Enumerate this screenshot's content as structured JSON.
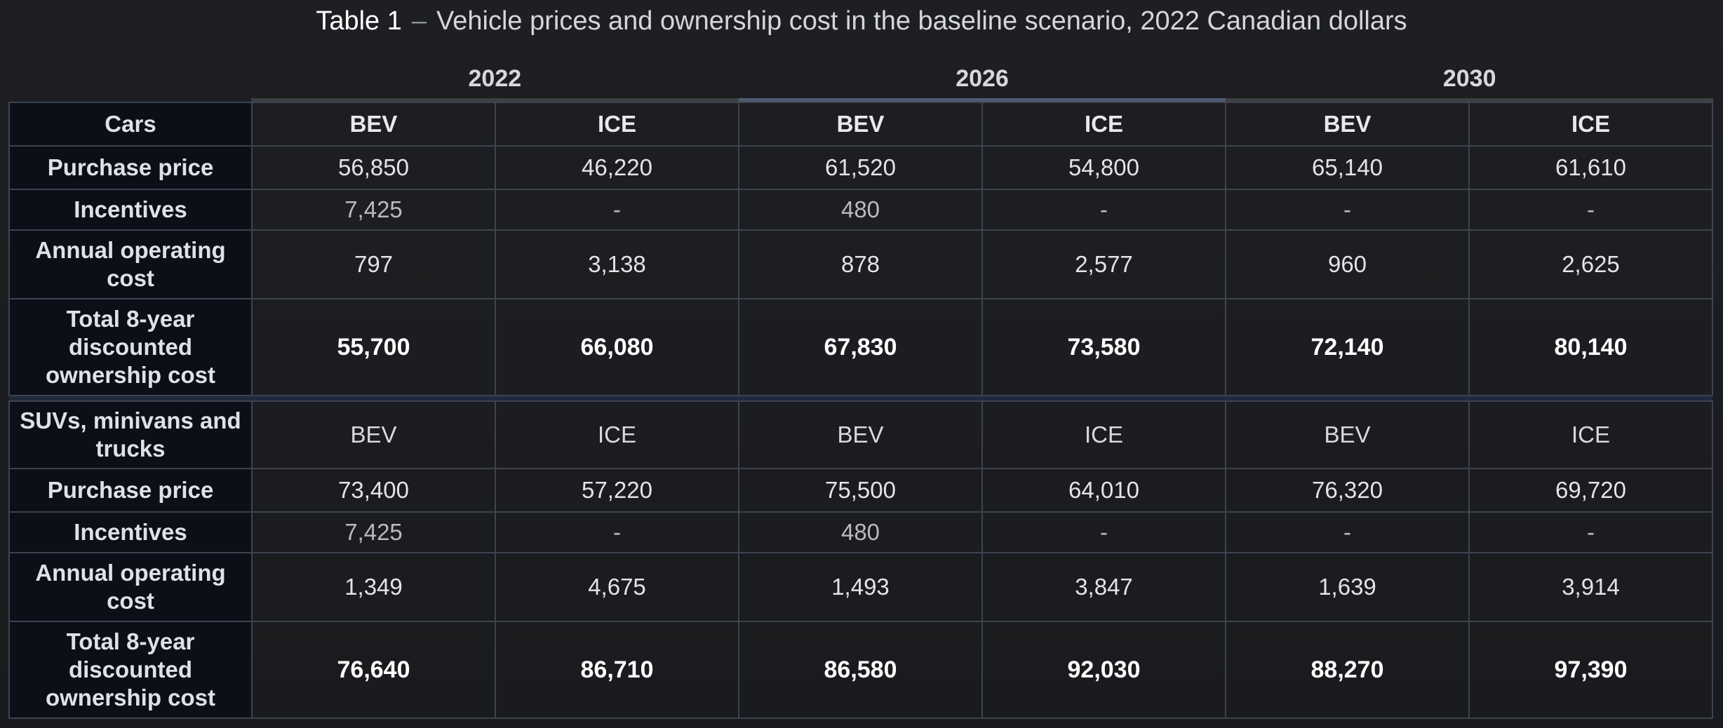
{
  "title": {
    "label": "Table 1",
    "dash": "–",
    "caption": "Vehicle prices and ownership cost in the baseline scenario, 2022 Canadian dollars"
  },
  "years": [
    "2022",
    "2026",
    "2030"
  ],
  "cars": {
    "header": "Cars",
    "types": [
      "BEV",
      "ICE",
      "BEV",
      "ICE",
      "BEV",
      "ICE"
    ],
    "rows": [
      {
        "label": "Purchase price",
        "values": [
          "56,850",
          "46,220",
          "61,520",
          "54,800",
          "65,140",
          "61,610"
        ]
      },
      {
        "label": "Incentives",
        "values": [
          "7,425",
          "-",
          "480",
          "-",
          "-",
          "-"
        ]
      },
      {
        "label": "Annual operating cost",
        "values": [
          "797",
          "3,138",
          "878",
          "2,577",
          "960",
          "2,625"
        ]
      },
      {
        "label": "Total 8-year discounted ownership cost",
        "values": [
          "55,700",
          "66,080",
          "67,830",
          "73,580",
          "72,140",
          "80,140"
        ]
      }
    ]
  },
  "suvs": {
    "header": "SUVs, minivans and trucks",
    "types": [
      "BEV",
      "ICE",
      "BEV",
      "ICE",
      "BEV",
      "ICE"
    ],
    "rows": [
      {
        "label": "Purchase price",
        "values": [
          "73,400",
          "57,220",
          "75,500",
          "64,010",
          "76,320",
          "69,720"
        ]
      },
      {
        "label": "Incentives",
        "values": [
          "7,425",
          "-",
          "480",
          "-",
          "-",
          "-"
        ]
      },
      {
        "label": "Annual operating cost",
        "values": [
          "1,349",
          "4,675",
          "1,493",
          "3,847",
          "1,639",
          "3,914"
        ]
      },
      {
        "label": "Total 8-year discounted ownership cost",
        "values": [
          "76,640",
          "86,710",
          "86,580",
          "92,030",
          "88,270",
          "97,390"
        ]
      }
    ]
  }
}
